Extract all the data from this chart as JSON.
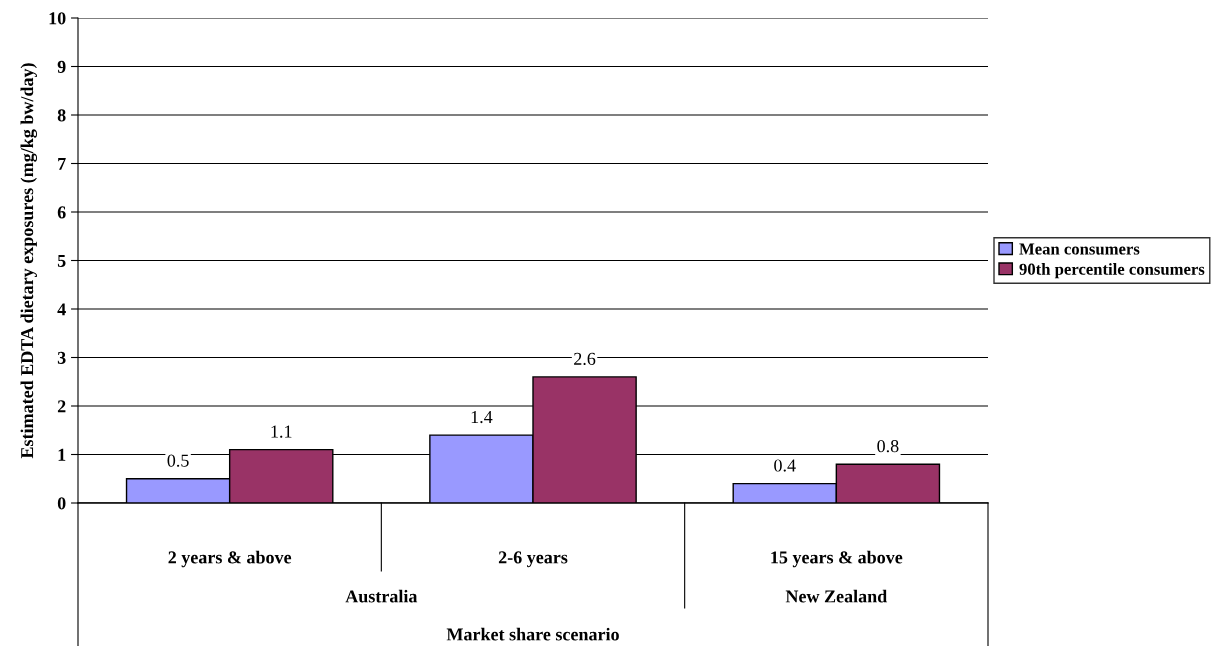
{
  "chart_data": {
    "type": "bar",
    "xlabel": "Market share scenario",
    "ylabel": "Estimated EDTA dietary exposures (mg/kg bw/day)",
    "categories": [
      "2 years & above",
      "2-6 years",
      "15 years & above"
    ],
    "series": [
      {
        "name": "Mean consumers",
        "color": "#9999ff",
        "values": [
          0.5,
          1.4,
          0.4
        ]
      },
      {
        "name": "90th percentile consumers",
        "color": "#993366",
        "values": [
          1.1,
          2.6,
          0.8
        ]
      }
    ],
    "annotations": [
      "Australia",
      "New Zealand"
    ],
    "ylim": [
      0,
      10
    ],
    "yticks": [
      0,
      1,
      2,
      3,
      4,
      5,
      6,
      7,
      8,
      9,
      10
    ],
    "grid": "y",
    "legend": "right",
    "data_labels": true
  }
}
